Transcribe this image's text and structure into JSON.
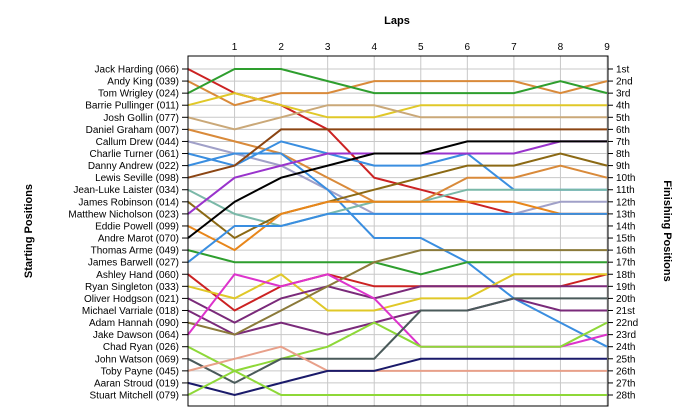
{
  "chart_data": {
    "type": "line",
    "title": "Laps",
    "ylabel_left": "Starting Positions",
    "ylabel_right": "Finishing Positions",
    "x": [
      0,
      1,
      2,
      3,
      4,
      5,
      6,
      7,
      8,
      9
    ],
    "x_tick_labels": [
      "1",
      "2",
      "3",
      "4",
      "5",
      "6",
      "7",
      "8",
      "9"
    ],
    "ylim": [
      1,
      28
    ],
    "grid": true,
    "starting_labels": [
      "Jack Harding (066)",
      "Andy King (039)",
      "Tom Wrigley (024)",
      "Barrie Pullinger (011)",
      "Josh Gollin (077)",
      "Daniel Graham (007)",
      "Callum Drew (044)",
      "Charlie Turner (061)",
      "Danny Andrew (022)",
      "Lewis Seville (098)",
      "Jean-Luke Laister (034)",
      "James Robinson (014)",
      "Matthew Nicholson (023)",
      "Eddie Powell (099)",
      "Andre Marot (070)",
      "Thomas Arme (049)",
      "James Barwell (027)",
      "Ashley Hand (060)",
      "Ryan Singleton (033)",
      "Oliver Hodgson (021)",
      "Michael Varriale (018)",
      "Adam Hannah (090)",
      "Jake Dawson (064)",
      "Chad Ryan (026)",
      "John Watson (069)",
      "Toby Payne (045)",
      "Aaran Stroud (019)",
      "Stuart Mitchell (079)"
    ],
    "finishing_labels": [
      "1st",
      "2nd",
      "3rd",
      "4th",
      "5th",
      "6th",
      "7th",
      "8th",
      "9th",
      "10th",
      "11th",
      "12th",
      "13th",
      "14th",
      "15th",
      "16th",
      "17th",
      "18th",
      "19th",
      "20th",
      "21st",
      "22nd",
      "23rd",
      "24th",
      "25th",
      "26th",
      "27th",
      "28th"
    ],
    "series": [
      {
        "color": "#cc2222",
        "values": [
          1,
          3,
          4,
          6,
          10,
          11,
          12,
          13,
          13,
          13
        ]
      },
      {
        "color": "#d98a3a",
        "values": [
          2,
          4,
          3,
          3,
          2,
          2,
          2,
          2,
          3,
          2
        ]
      },
      {
        "color": "#2e9e2e",
        "values": [
          3,
          1,
          1,
          2,
          3,
          3,
          3,
          3,
          2,
          3
        ]
      },
      {
        "color": "#e0c828",
        "values": [
          4,
          3,
          4,
          5,
          5,
          4,
          4,
          4,
          4,
          4
        ]
      },
      {
        "color": "#caa878",
        "values": [
          5,
          6,
          5,
          4,
          4,
          5,
          5,
          5,
          5,
          5
        ]
      },
      {
        "color": "#d98a3a",
        "values": [
          6,
          7,
          8,
          10,
          12,
          12,
          10,
          10,
          9,
          10
        ]
      },
      {
        "color": "#a0a0c8",
        "values": [
          7,
          8,
          9,
          11,
          13,
          13,
          13,
          13,
          12,
          12
        ]
      },
      {
        "color": "#3a8ee0",
        "values": [
          8,
          9,
          7,
          8,
          9,
          9,
          8,
          11,
          11,
          11
        ]
      },
      {
        "color": "#3a8ee0",
        "values": [
          9,
          8,
          8,
          11,
          15,
          15,
          17,
          20,
          22,
          24
        ]
      },
      {
        "color": "#8b4513",
        "values": [
          10,
          9,
          6,
          6,
          6,
          6,
          6,
          6,
          6,
          6
        ]
      },
      {
        "color": "#7ab8a8",
        "values": [
          11,
          13,
          14,
          13,
          12,
          12,
          11,
          11,
          11,
          11
        ]
      },
      {
        "color": "#8b6914",
        "values": [
          12,
          15,
          13,
          12,
          11,
          10,
          9,
          9,
          8,
          9
        ]
      },
      {
        "color": "#9933cc",
        "values": [
          13,
          10,
          9,
          8,
          8,
          8,
          8,
          8,
          7,
          7
        ]
      },
      {
        "color": "#e8861a",
        "values": [
          14,
          16,
          13,
          12,
          12,
          12,
          12,
          12,
          13,
          13
        ]
      },
      {
        "color": "#000000",
        "values": [
          15,
          12,
          10,
          9,
          8,
          8,
          7,
          7,
          7,
          7
        ]
      },
      {
        "color": "#2e9e2e",
        "values": [
          16,
          17,
          17,
          17,
          17,
          18,
          17,
          17,
          17,
          17
        ]
      },
      {
        "color": "#3a8ee0",
        "values": [
          17,
          14,
          14,
          13,
          13,
          13,
          13,
          13,
          13,
          13
        ]
      },
      {
        "color": "#cc2222",
        "values": [
          18,
          21,
          19,
          18,
          19,
          19,
          19,
          19,
          19,
          18
        ]
      },
      {
        "color": "#e0c828",
        "values": [
          19,
          20,
          18,
          21,
          21,
          20,
          20,
          18,
          18,
          18
        ]
      },
      {
        "color": "#7a2a7a",
        "values": [
          20,
          22,
          20,
          19,
          20,
          19,
          19,
          19,
          19,
          19
        ]
      },
      {
        "color": "#7a2a7a",
        "values": [
          21,
          23,
          22,
          23,
          22,
          21,
          21,
          20,
          21,
          21
        ]
      },
      {
        "color": "#8b7a3a",
        "values": [
          22,
          23,
          21,
          19,
          17,
          16,
          16,
          16,
          16,
          16
        ]
      },
      {
        "color": "#dd33cc",
        "values": [
          23,
          18,
          19,
          18,
          20,
          24,
          24,
          24,
          24,
          23
        ]
      },
      {
        "color": "#8ed838",
        "values": [
          24,
          26,
          25,
          24,
          22,
          24,
          24,
          24,
          24,
          22
        ]
      },
      {
        "color": "#4a5a5a",
        "values": [
          25,
          27,
          25,
          25,
          25,
          21,
          21,
          20,
          20,
          20
        ]
      },
      {
        "color": "#e8a08a",
        "values": [
          26,
          25,
          24,
          26,
          26,
          26,
          26,
          26,
          26,
          26
        ]
      },
      {
        "color": "#1a1a6a",
        "values": [
          27,
          28,
          27,
          26,
          26,
          25,
          25,
          25,
          25,
          25
        ]
      },
      {
        "color": "#8ed838",
        "values": [
          28,
          26,
          28,
          28,
          28,
          28,
          28,
          28,
          28,
          28
        ]
      }
    ]
  }
}
